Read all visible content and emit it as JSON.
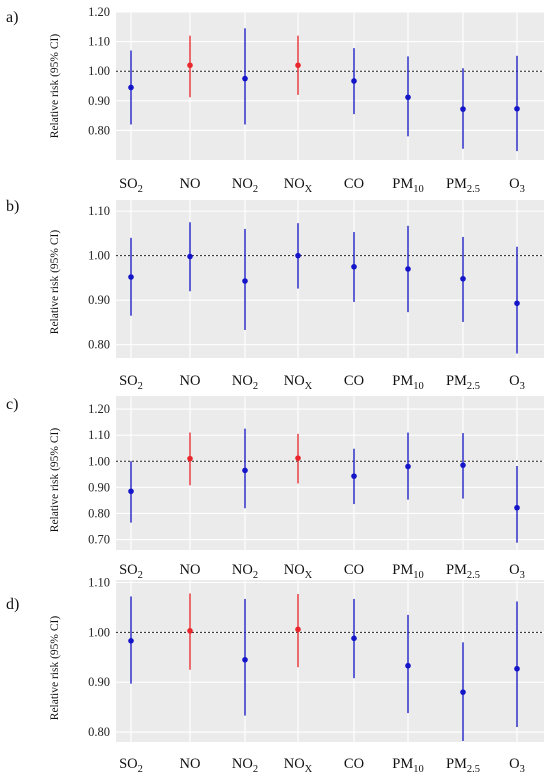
{
  "colors": {
    "background": "#ebebeb",
    "grid": "#ffffff",
    "significant": "#e8262b",
    "non_significant": "#1414c8",
    "reference_line": "#222222"
  },
  "chart_data": [
    {
      "type": "scatter",
      "panel_label": "a)",
      "ylabel": "Relative risk (95% CI)",
      "ylim": [
        0.7,
        1.2
      ],
      "yticks": [
        "0.80",
        "0.90",
        "1.00",
        "1.10",
        "1.20"
      ],
      "reference_line": 1.0,
      "grid": true,
      "categories": [
        "SO2",
        "NO",
        "NO2",
        "NOX",
        "CO",
        "PM10",
        "PM2.5",
        "O3"
      ],
      "category_labels": [
        {
          "base": "SO",
          "sub": "2"
        },
        {
          "base": "NO",
          "sub": ""
        },
        {
          "base": "NO",
          "sub": "2"
        },
        {
          "base": "NO",
          "sub": "X"
        },
        {
          "base": "CO",
          "sub": ""
        },
        {
          "base": "PM",
          "sub": "10"
        },
        {
          "base": "PM",
          "sub": "2.5"
        },
        {
          "base": "O",
          "sub": "3"
        }
      ],
      "estimate": [
        0.945,
        1.02,
        0.975,
        1.02,
        0.967,
        0.912,
        0.872,
        0.873
      ],
      "lower": [
        0.82,
        0.912,
        0.82,
        0.92,
        0.855,
        0.78,
        0.738,
        0.73
      ],
      "upper": [
        1.07,
        1.12,
        1.145,
        1.12,
        1.078,
        1.05,
        1.01,
        1.052
      ],
      "highlighted": [
        false,
        true,
        false,
        true,
        false,
        false,
        false,
        false
      ]
    },
    {
      "type": "scatter",
      "panel_label": "b)",
      "ylabel": "Relative risk (95% CI)",
      "ylim": [
        0.77,
        1.125
      ],
      "yticks": [
        "0.80",
        "0.90",
        "1.00",
        "1.10"
      ],
      "reference_line": 1.0,
      "grid": true,
      "categories": [
        "SO2",
        "NO",
        "NO2",
        "NOX",
        "CO",
        "PM10",
        "PM2.5",
        "O3"
      ],
      "category_labels": [
        {
          "base": "SO",
          "sub": "2"
        },
        {
          "base": "NO",
          "sub": ""
        },
        {
          "base": "NO",
          "sub": "2"
        },
        {
          "base": "NO",
          "sub": "X"
        },
        {
          "base": "CO",
          "sub": ""
        },
        {
          "base": "PM",
          "sub": "10"
        },
        {
          "base": "PM",
          "sub": "2.5"
        },
        {
          "base": "O",
          "sub": "3"
        }
      ],
      "estimate": [
        0.952,
        0.998,
        0.943,
        1.0,
        0.975,
        0.97,
        0.948,
        0.893
      ],
      "lower": [
        0.865,
        0.92,
        0.833,
        0.926,
        0.896,
        0.873,
        0.851,
        0.78
      ],
      "upper": [
        1.04,
        1.075,
        1.06,
        1.073,
        1.053,
        1.067,
        1.042,
        1.02
      ],
      "highlighted": [
        false,
        false,
        false,
        false,
        false,
        false,
        false,
        false
      ]
    },
    {
      "type": "scatter",
      "panel_label": "c)",
      "ylabel": "Relative risk (95% CI)",
      "ylim": [
        0.66,
        1.25
      ],
      "yticks": [
        "0.70",
        "0.80",
        "0.90",
        "1.00",
        "1.10",
        "1.20"
      ],
      "reference_line": 1.0,
      "grid": true,
      "categories": [
        "SO2",
        "NO",
        "NO2",
        "NOX",
        "CO",
        "PM10",
        "PM2.5",
        "O3"
      ],
      "category_labels": [
        {
          "base": "SO",
          "sub": "2"
        },
        {
          "base": "NO",
          "sub": ""
        },
        {
          "base": "NO",
          "sub": "2"
        },
        {
          "base": "NO",
          "sub": "X"
        },
        {
          "base": "CO",
          "sub": ""
        },
        {
          "base": "PM",
          "sub": "10"
        },
        {
          "base": "PM",
          "sub": "2.5"
        },
        {
          "base": "O",
          "sub": "3"
        }
      ],
      "estimate": [
        0.885,
        1.01,
        0.965,
        1.012,
        0.943,
        0.98,
        0.985,
        0.822
      ],
      "lower": [
        0.765,
        0.908,
        0.82,
        0.915,
        0.836,
        0.853,
        0.857,
        0.688
      ],
      "upper": [
        1.0,
        1.11,
        1.125,
        1.105,
        1.048,
        1.11,
        1.108,
        0.982
      ],
      "highlighted": [
        false,
        true,
        false,
        true,
        false,
        false,
        false,
        false
      ]
    },
    {
      "type": "scatter",
      "panel_label": "d)",
      "ylabel": "Relative risk (95% CI)",
      "ylim": [
        0.78,
        1.105
      ],
      "yticks": [
        "0.80",
        "0.90",
        "1.00",
        "1.10"
      ],
      "reference_line": 1.0,
      "grid": true,
      "categories": [
        "SO2",
        "NO",
        "NO2",
        "NOX",
        "CO",
        "PM10",
        "PM2.5",
        "O3"
      ],
      "category_labels": [
        {
          "base": "SO",
          "sub": "2"
        },
        {
          "base": "NO",
          "sub": ""
        },
        {
          "base": "NO",
          "sub": "2"
        },
        {
          "base": "NO",
          "sub": "X"
        },
        {
          "base": "CO",
          "sub": ""
        },
        {
          "base": "PM",
          "sub": "10"
        },
        {
          "base": "PM",
          "sub": "2.5"
        },
        {
          "base": "O",
          "sub": "3"
        }
      ],
      "estimate": [
        0.983,
        1.003,
        0.945,
        1.006,
        0.988,
        0.933,
        0.88,
        0.927
      ],
      "lower": [
        0.897,
        0.925,
        0.833,
        0.93,
        0.908,
        0.838,
        0.782,
        0.81
      ],
      "upper": [
        1.072,
        1.078,
        1.067,
        1.077,
        1.067,
        1.035,
        0.98,
        1.062
      ],
      "highlighted": [
        false,
        true,
        false,
        true,
        false,
        false,
        false,
        false
      ]
    }
  ]
}
